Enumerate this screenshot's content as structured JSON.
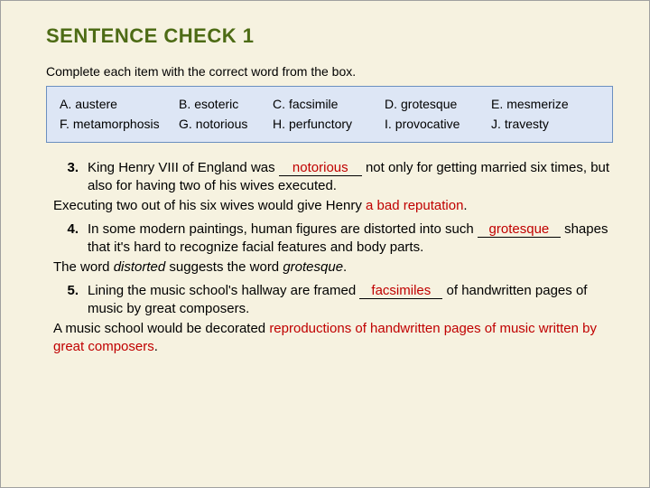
{
  "title": "SENTENCE CHECK 1",
  "instruction": "Complete each item with the correct word from the box.",
  "colors": {
    "page_bg": "#f6f2e0",
    "title_color": "#4d6b15",
    "box_border": "#6b8fc0",
    "box_bg": "#dde6f5",
    "answer_color": "#c00000"
  },
  "wordbox": {
    "row1": [
      {
        "letter": "A.",
        "word": "austere"
      },
      {
        "letter": "B.",
        "word": "esoteric"
      },
      {
        "letter": "C.",
        "word": "facsimile"
      },
      {
        "letter": "D.",
        "word": "grotesque"
      },
      {
        "letter": "E.",
        "word": "mesmerize"
      }
    ],
    "row2": [
      {
        "letter": "F.",
        "word": "metamorphosis"
      },
      {
        "letter": "G.",
        "word": "notorious"
      },
      {
        "letter": "H.",
        "word": "perfunctory"
      },
      {
        "letter": "I.",
        "word": "provocative"
      },
      {
        "letter": "J.",
        "word": "travesty"
      }
    ]
  },
  "items": {
    "q3": {
      "num": "3.",
      "pre": "King Henry VIII of England was ",
      "ans": "notorious",
      "post": " not only for getting married six times, but also for having two of his wives executed.",
      "explain_pre": "Executing two out of his six wives would give Henry ",
      "explain_hi": "a bad reputation",
      "explain_post": "."
    },
    "q4": {
      "num": "4.",
      "pre": "In some modern paintings, human figures are distorted into such ",
      "ans": "grotesque",
      "post": " shapes that it's hard to recognize facial features and body parts.",
      "explain_a": "The word ",
      "explain_em1": "distorted",
      "explain_b": " suggests the word ",
      "explain_em2": "grotesque",
      "explain_c": "."
    },
    "q5": {
      "num": "5.",
      "pre": "Lining the music school's hallway are framed ",
      "ans": "facsimiles",
      "post": " of handwritten pages of music by great composers.",
      "explain_pre": "A music school would be decorated ",
      "explain_hi": "reproductions of handwritten pages of music written by great composers",
      "explain_post": "."
    }
  }
}
